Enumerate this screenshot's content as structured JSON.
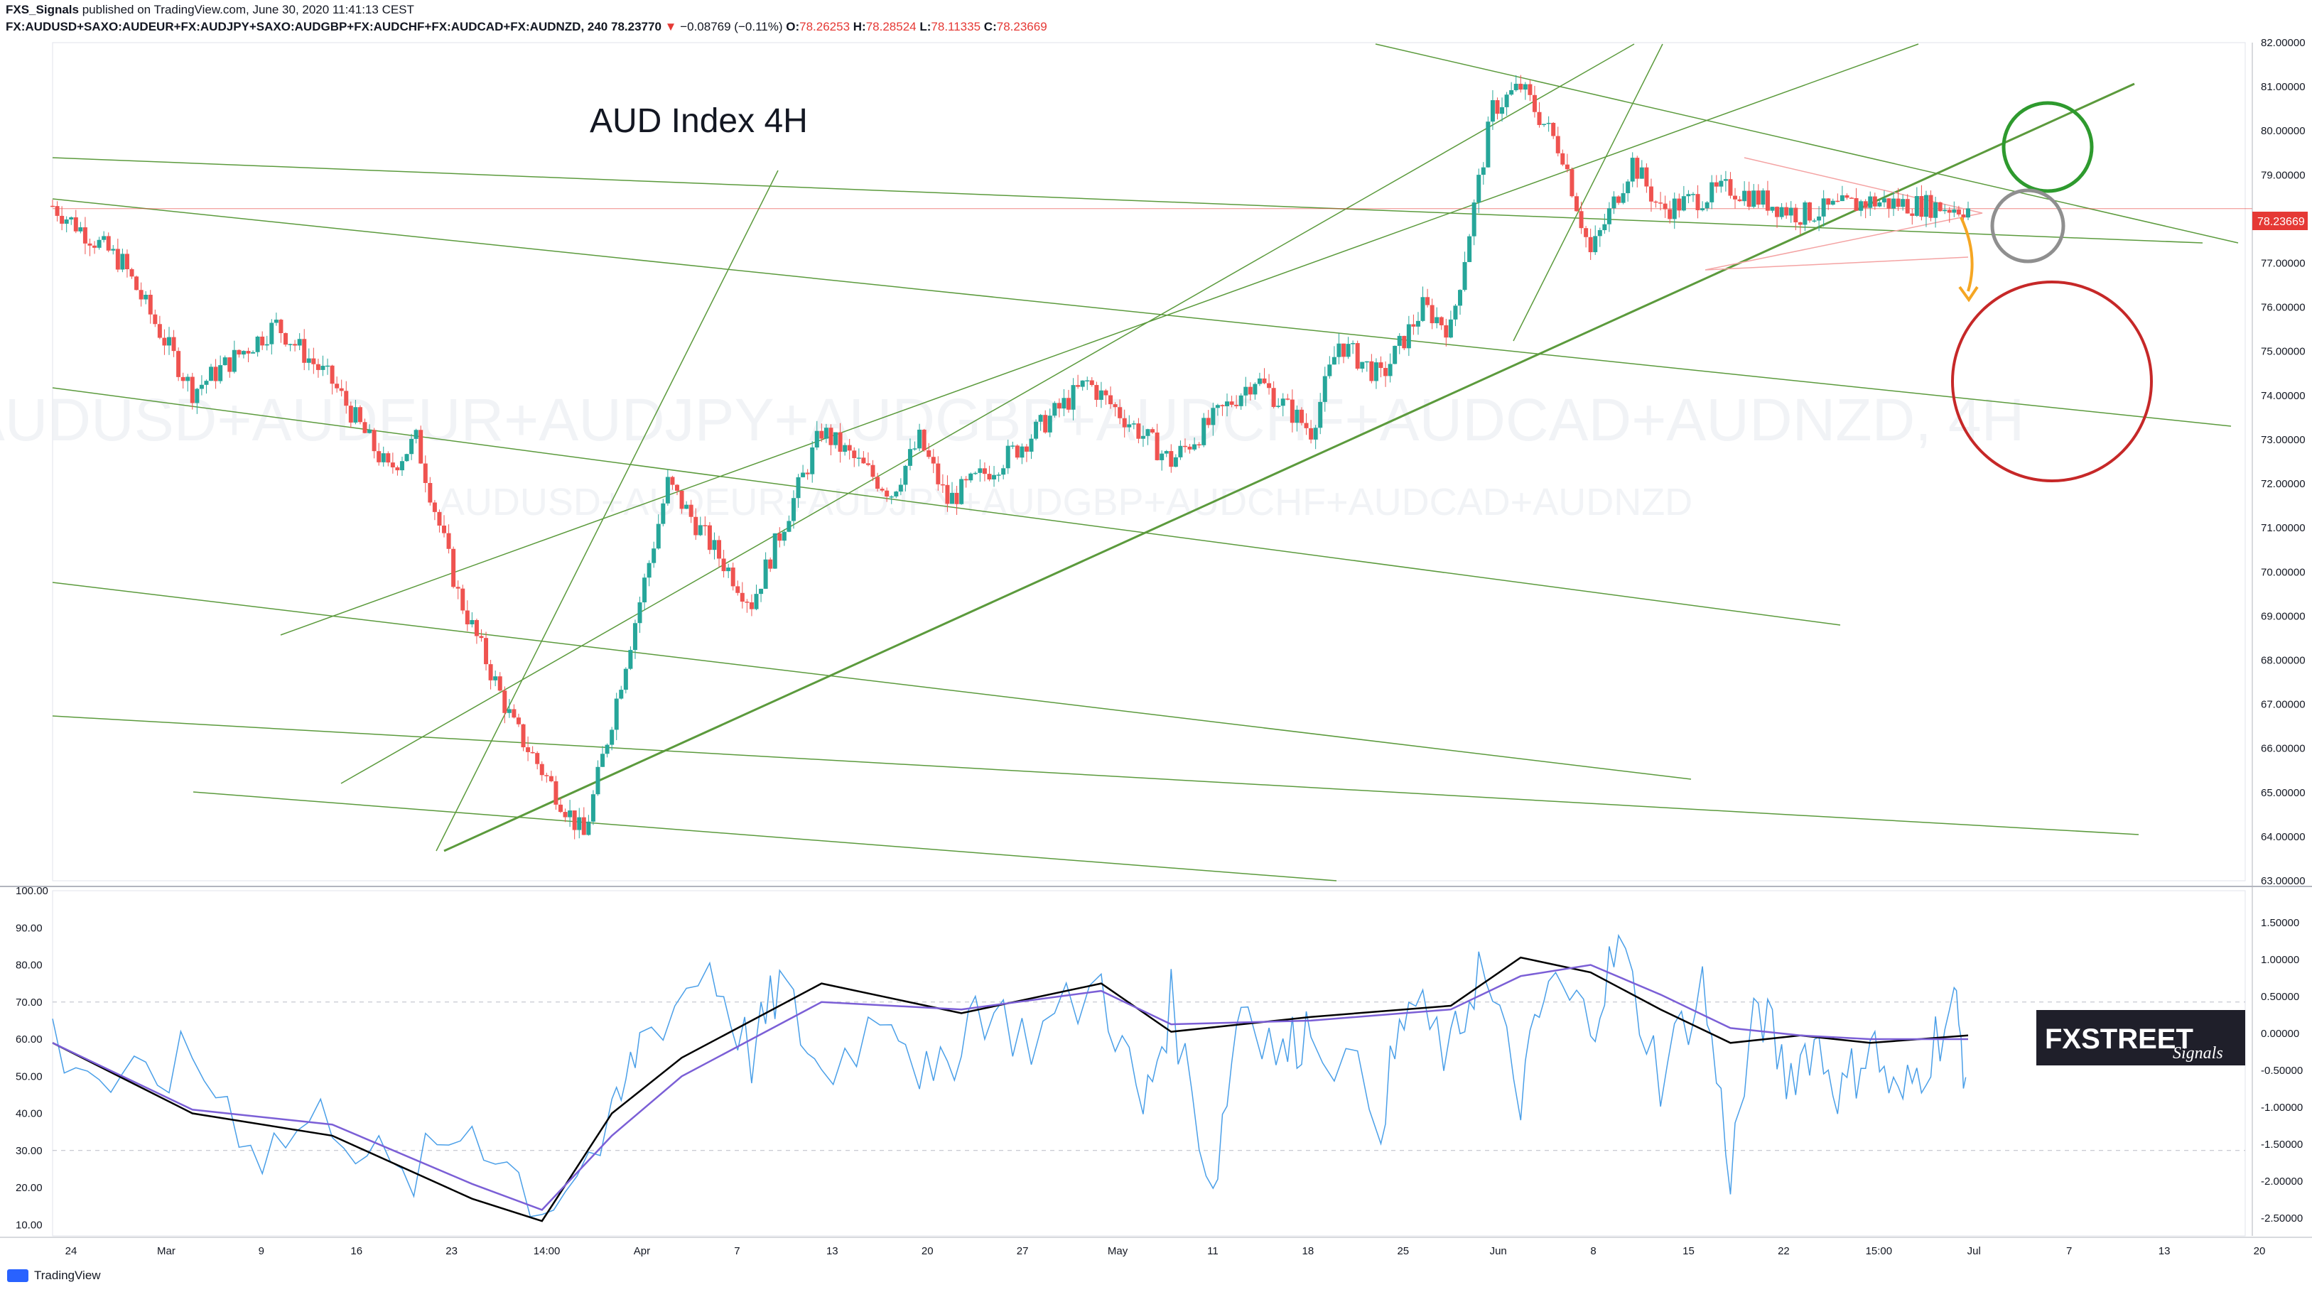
{
  "header": {
    "publisher": "FXS_Signals",
    "published_text": "published on TradingView.com, June 30, 2020 11:41:13 CEST",
    "symbol": "FX:AUDUSD+SAXO:AUDEUR+FX:AUDJPY+SAXO:AUDGBP+FX:AUDCHF+FX:AUDCAD+FX:AUDNZD, 240",
    "last": "78.23770",
    "change": "−0.08769 (−0.11%)",
    "o_label": "O:",
    "o": "78.26253",
    "h_label": "H:",
    "h": "78.28524",
    "l_label": "L:",
    "l": "78.11335",
    "c_label": "C:",
    "c": "78.23669"
  },
  "title": "AUD Index 4H",
  "watermark_1": "AUDUSD+AUDEUR+AUDJPY+AUDGBP+AUDCHF+AUDCAD+AUDNZD, 4H",
  "watermark_2": "AUDUSD+AUDEUR+AUDJPY+AUDGBP+AUDCHF+AUDCAD+AUDNZD",
  "price_badge": "78.23669",
  "logo_text": "FXSTREET",
  "logo_sub": "Signals",
  "footer": "TradingView",
  "colors": {
    "up": "#26a69a",
    "down": "#ef5350",
    "trendline": "#5b9a3c",
    "rsi": "#4a9fe8",
    "ma_black": "#000000",
    "ma_purple": "#7b5fd6",
    "badge": "#e53935",
    "circle_green": "#2e9a2e",
    "circle_gray": "#8f8f8f",
    "circle_red": "#c62828",
    "arrow": "#f5a623"
  },
  "chart_data": [
    {
      "type": "candlestick",
      "ylim": [
        63,
        82
      ],
      "y_ticks": [
        "82.00000",
        "81.00000",
        "80.00000",
        "79.00000",
        "78.00000",
        "77.00000",
        "76.00000",
        "75.00000",
        "74.00000",
        "73.00000",
        "72.00000",
        "71.00000",
        "70.00000",
        "69.00000",
        "68.00000",
        "67.00000",
        "66.00000",
        "65.00000",
        "64.00000",
        "63.00000"
      ],
      "x_ticks": [
        "24",
        "Mar",
        "9",
        "16",
        "23",
        "14:00",
        "Apr",
        "7",
        "13",
        "20",
        "27",
        "May",
        "11",
        "18",
        "25",
        "Jun",
        "8",
        "15",
        "22",
        "15:00",
        "Jul",
        "7",
        "13",
        "20"
      ],
      "x": [
        0,
        5,
        10,
        16,
        20,
        24,
        26,
        29,
        33,
        38,
        44,
        50,
        55,
        60,
        62,
        64,
        69,
        74,
        80,
        86,
        90,
        92,
        95,
        98,
        100,
        103,
        105,
        108,
        110,
        113,
        115,
        120,
        125,
        130,
        137
      ],
      "close": [
        78.3,
        77.0,
        74.1,
        75.6,
        74.3,
        72.3,
        73.0,
        69.5,
        66.5,
        64.0,
        72.0,
        69.3,
        73.2,
        71.8,
        73.0,
        71.6,
        72.8,
        74.3,
        72.5,
        74.4,
        73.2,
        75.2,
        74.4,
        76.0,
        75.5,
        80.5,
        81.0,
        79.5,
        77.2,
        79.3,
        78.2,
        78.7,
        78.1,
        78.4,
        78.24
      ],
      "last_price": 78.23669
    },
    {
      "type": "line",
      "series": [
        {
          "x": [
            0,
            5,
            10,
            15,
            20,
            25,
            30,
            35,
            40,
            42,
            47,
            50,
            52,
            55,
            60,
            63,
            66,
            70,
            75,
            78,
            80,
            83,
            85,
            88,
            90,
            95,
            97,
            100,
            102,
            105,
            107,
            110,
            112,
            115,
            118,
            120,
            122,
            124,
            126,
            128,
            130,
            132,
            134,
            136,
            137
          ],
          "values": [
            60,
            45,
            55,
            30,
            40,
            20,
            38,
            15,
            35,
            60,
            80,
            55,
            75,
            50,
            70,
            45,
            70,
            60,
            75,
            40,
            70,
            20,
            72,
            55,
            65,
            40,
            70,
            55,
            80,
            45,
            75,
            65,
            85,
            50,
            75,
            25,
            70,
            50,
            60,
            45,
            60,
            42,
            55,
            70,
            48
          ]
        },
        {
          "x": [
            0,
            10,
            20,
            30,
            35,
            40,
            45,
            55,
            65,
            75,
            80,
            90,
            100,
            105,
            110,
            115,
            120,
            125,
            130,
            137
          ],
          "values": [
            59,
            40,
            34,
            17,
            11,
            40,
            55,
            75,
            67,
            75,
            62,
            66,
            69,
            82,
            78,
            68,
            59,
            61,
            59,
            61
          ]
        },
        {
          "x": [
            0,
            10,
            20,
            30,
            35,
            40,
            45,
            55,
            65,
            75,
            80,
            90,
            100,
            105,
            110,
            115,
            120,
            125,
            130,
            137
          ],
          "values": [
            59,
            41,
            37,
            21,
            14,
            34,
            50,
            70,
            68,
            73,
            64,
            65,
            68,
            77,
            80,
            72,
            63,
            61,
            60,
            60
          ]
        }
      ],
      "ylim": [
        7,
        100
      ],
      "y_ticks": [
        "100.00",
        "90.00",
        "80.00",
        "70.00",
        "60.00",
        "50.00",
        "40.00",
        "30.00",
        "20.00",
        "10.00"
      ],
      "y2_ticks": [
        "1.50000",
        "1.00000",
        "0.50000",
        "0.00000",
        "-0.50000",
        "-1.00000",
        "-1.50000",
        "-2.00000",
        "-2.50000"
      ]
    }
  ]
}
